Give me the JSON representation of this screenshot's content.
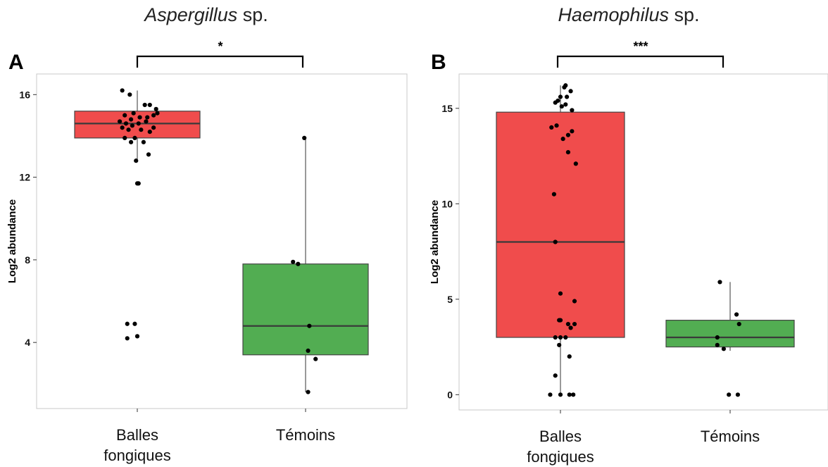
{
  "chart_data": [
    {
      "type": "box",
      "panel_label": "A",
      "title_italic": "Aspergillus",
      "title_rest": " sp.",
      "ylabel": "Log2 abundance",
      "ylim": [
        0.8,
        17.0
      ],
      "yticks": [
        4,
        8,
        12,
        16
      ],
      "yticklabels": [
        "4",
        "8",
        "12",
        "16"
      ],
      "categories": [
        [
          "Balles",
          "fongiques"
        ],
        [
          "Témoins"
        ]
      ],
      "significance": "*",
      "colors": [
        "#f04c4c",
        "#52ad52"
      ],
      "boxes": [
        {
          "whisker_low": 12.8,
          "q1": 13.9,
          "median": 14.6,
          "q3": 15.2,
          "whisker_high": 16.2
        },
        {
          "whisker_low": 1.6,
          "q1": 3.4,
          "median": 4.8,
          "q3": 7.8,
          "whisker_high": 13.9
        }
      ],
      "points": [
        [
          [
            -0.12,
            16.2
          ],
          [
            -0.06,
            16.0
          ],
          [
            0.06,
            15.5
          ],
          [
            0.1,
            15.5
          ],
          [
            0.15,
            15.3
          ],
          [
            0.16,
            15.1
          ],
          [
            -0.03,
            15.1
          ],
          [
            0.13,
            15.0
          ],
          [
            -0.1,
            15.0
          ],
          [
            0.08,
            14.9
          ],
          [
            0.02,
            14.9
          ],
          [
            -0.05,
            14.8
          ],
          [
            -0.14,
            14.7
          ],
          [
            0.01,
            14.6
          ],
          [
            -0.09,
            14.6
          ],
          [
            0.07,
            14.7
          ],
          [
            0.13,
            14.4
          ],
          [
            -0.12,
            14.4
          ],
          [
            -0.04,
            14.5
          ],
          [
            0.1,
            14.2
          ],
          [
            0.03,
            14.3
          ],
          [
            -0.07,
            14.3
          ],
          [
            -0.1,
            13.9
          ],
          [
            -0.02,
            13.9
          ],
          [
            0.05,
            13.7
          ],
          [
            -0.05,
            13.7
          ],
          [
            0.09,
            13.1
          ],
          [
            -0.01,
            12.8
          ],
          [
            0.0,
            11.7
          ],
          [
            0.01,
            11.7
          ],
          [
            -0.08,
            4.9
          ],
          [
            -0.02,
            4.9
          ],
          [
            0.0,
            4.3
          ],
          [
            -0.08,
            4.2
          ]
        ],
        [
          [
            -0.01,
            13.9
          ],
          [
            -0.1,
            7.9
          ],
          [
            -0.06,
            7.8
          ],
          [
            0.03,
            4.8
          ],
          [
            0.02,
            3.6
          ],
          [
            0.08,
            3.2
          ],
          [
            0.02,
            1.6
          ]
        ]
      ]
    },
    {
      "type": "box",
      "panel_label": "B",
      "title_italic": "Haemophilus",
      "title_rest": " sp.",
      "ylabel": "Log2 abundance",
      "ylim": [
        -0.8,
        16.8
      ],
      "yticks": [
        0,
        5,
        10,
        15
      ],
      "yticklabels": [
        "0",
        "5",
        "10",
        "15"
      ],
      "categories": [
        [
          "Balles",
          "fongiques"
        ],
        [
          "Témoins"
        ]
      ],
      "significance": "***",
      "colors": [
        "#f04c4c",
        "#52ad52"
      ],
      "boxes": [
        {
          "whisker_low": 0.0,
          "q1": 3.0,
          "median": 8.0,
          "q3": 14.8,
          "whisker_high": 16.2
        },
        {
          "whisker_low": 2.3,
          "q1": 2.5,
          "median": 3.0,
          "q3": 3.9,
          "whisker_high": 5.9
        }
      ],
      "points": [
        [
          [
            0.04,
            16.2
          ],
          [
            0.03,
            16.1
          ],
          [
            0.08,
            15.9
          ],
          [
            0.05,
            15.6
          ],
          [
            0.0,
            15.6
          ],
          [
            -0.02,
            15.4
          ],
          [
            -0.04,
            15.3
          ],
          [
            0.04,
            15.2
          ],
          [
            0.01,
            15.1
          ],
          [
            0.09,
            14.9
          ],
          [
            -0.07,
            14.0
          ],
          [
            -0.03,
            14.1
          ],
          [
            0.09,
            13.8
          ],
          [
            0.06,
            13.6
          ],
          [
            0.02,
            13.4
          ],
          [
            0.06,
            12.7
          ],
          [
            0.12,
            12.1
          ],
          [
            -0.05,
            10.5
          ],
          [
            -0.04,
            8.0
          ],
          [
            0.0,
            5.3
          ],
          [
            0.11,
            4.9
          ],
          [
            0.0,
            3.9
          ],
          [
            -0.01,
            3.9
          ],
          [
            0.11,
            3.7
          ],
          [
            0.06,
            3.7
          ],
          [
            0.08,
            3.5
          ],
          [
            0.04,
            3.0
          ],
          [
            -0.04,
            3.0
          ],
          [
            0.0,
            3.0
          ],
          [
            -0.01,
            2.6
          ],
          [
            0.07,
            2.0
          ],
          [
            -0.04,
            1.0
          ],
          [
            -0.08,
            0.0
          ],
          [
            0.0,
            0.0
          ],
          [
            0.07,
            0.0
          ],
          [
            0.1,
            0.0
          ]
        ],
        [
          [
            -0.08,
            5.9
          ],
          [
            0.05,
            4.2
          ],
          [
            0.07,
            3.7
          ],
          [
            -0.1,
            3.0
          ],
          [
            -0.1,
            2.6
          ],
          [
            -0.05,
            2.4
          ],
          [
            -0.01,
            0.0
          ],
          [
            0.06,
            0.0
          ]
        ]
      ]
    }
  ]
}
